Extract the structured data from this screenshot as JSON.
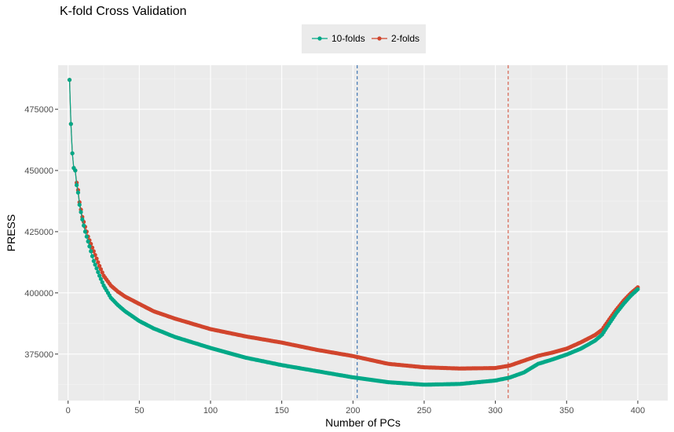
{
  "chart_data": {
    "type": "line",
    "title": "K-fold Cross Validation",
    "xlabel": "Number of PCs",
    "ylabel": "PRESS",
    "xlim": [
      -7,
      421
    ],
    "ylim": [
      356000,
      493000
    ],
    "x_ticks": [
      0,
      50,
      100,
      150,
      200,
      250,
      300,
      350,
      400
    ],
    "x_tick_labels": [
      "0",
      "50",
      "100",
      "150",
      "200",
      "250",
      "300",
      "350",
      "400"
    ],
    "y_ticks": [
      375000,
      400000,
      425000,
      450000,
      475000
    ],
    "y_tick_labels": [
      "375000",
      "400000",
      "425000",
      "450000",
      "475000"
    ],
    "grid": true,
    "legend_position": "top",
    "series": [
      {
        "name": "10-folds",
        "color": "#00a887",
        "x": [
          1,
          2,
          3,
          4,
          5,
          6,
          7,
          8,
          9,
          10,
          12,
          14,
          16,
          18,
          20,
          22,
          25,
          30,
          35,
          40,
          50,
          60,
          75,
          100,
          125,
          150,
          175,
          200,
          225,
          250,
          275,
          300,
          310,
          320,
          330,
          340,
          350,
          360,
          370,
          375,
          380,
          385,
          390,
          395,
          400
        ],
        "y": [
          487000,
          469000,
          457000,
          451000,
          450000,
          444000,
          441000,
          436000,
          433000,
          430000,
          425000,
          421000,
          417000,
          413000,
          410000,
          407000,
          403000,
          398000,
          395000,
          392500,
          388500,
          385500,
          382000,
          377500,
          373500,
          370500,
          368000,
          365500,
          363500,
          362500,
          362800,
          364200,
          365400,
          367500,
          371000,
          372800,
          374800,
          377200,
          380500,
          383000,
          387500,
          391800,
          395500,
          398800,
          401500
        ]
      },
      {
        "name": "2-folds",
        "color": "#d1452d",
        "x": [
          1,
          2,
          3,
          4,
          5,
          6,
          7,
          8,
          9,
          10,
          12,
          14,
          16,
          18,
          20,
          22,
          25,
          30,
          35,
          40,
          50,
          60,
          75,
          100,
          125,
          150,
          175,
          200,
          225,
          250,
          275,
          300,
          310,
          320,
          330,
          340,
          350,
          360,
          370,
          375,
          380,
          385,
          390,
          395,
          400
        ],
        "y": [
          487000,
          469000,
          457000,
          451000,
          450000,
          445000,
          442000,
          437000,
          434000,
          431000,
          427000,
          423000,
          420000,
          417000,
          414000,
          411000,
          407000,
          403000,
          400500,
          398500,
          395500,
          392500,
          389500,
          385200,
          382200,
          379700,
          376700,
          374200,
          371000,
          369600,
          369100,
          369300,
          370300,
          372300,
          374300,
          375600,
          377200,
          379800,
          382800,
          385000,
          389200,
          393200,
          396800,
          399800,
          402300
        ]
      }
    ],
    "vlines": [
      {
        "x": 203,
        "color": "#1f5fa8"
      },
      {
        "x": 309,
        "color": "#d1452d"
      }
    ]
  }
}
